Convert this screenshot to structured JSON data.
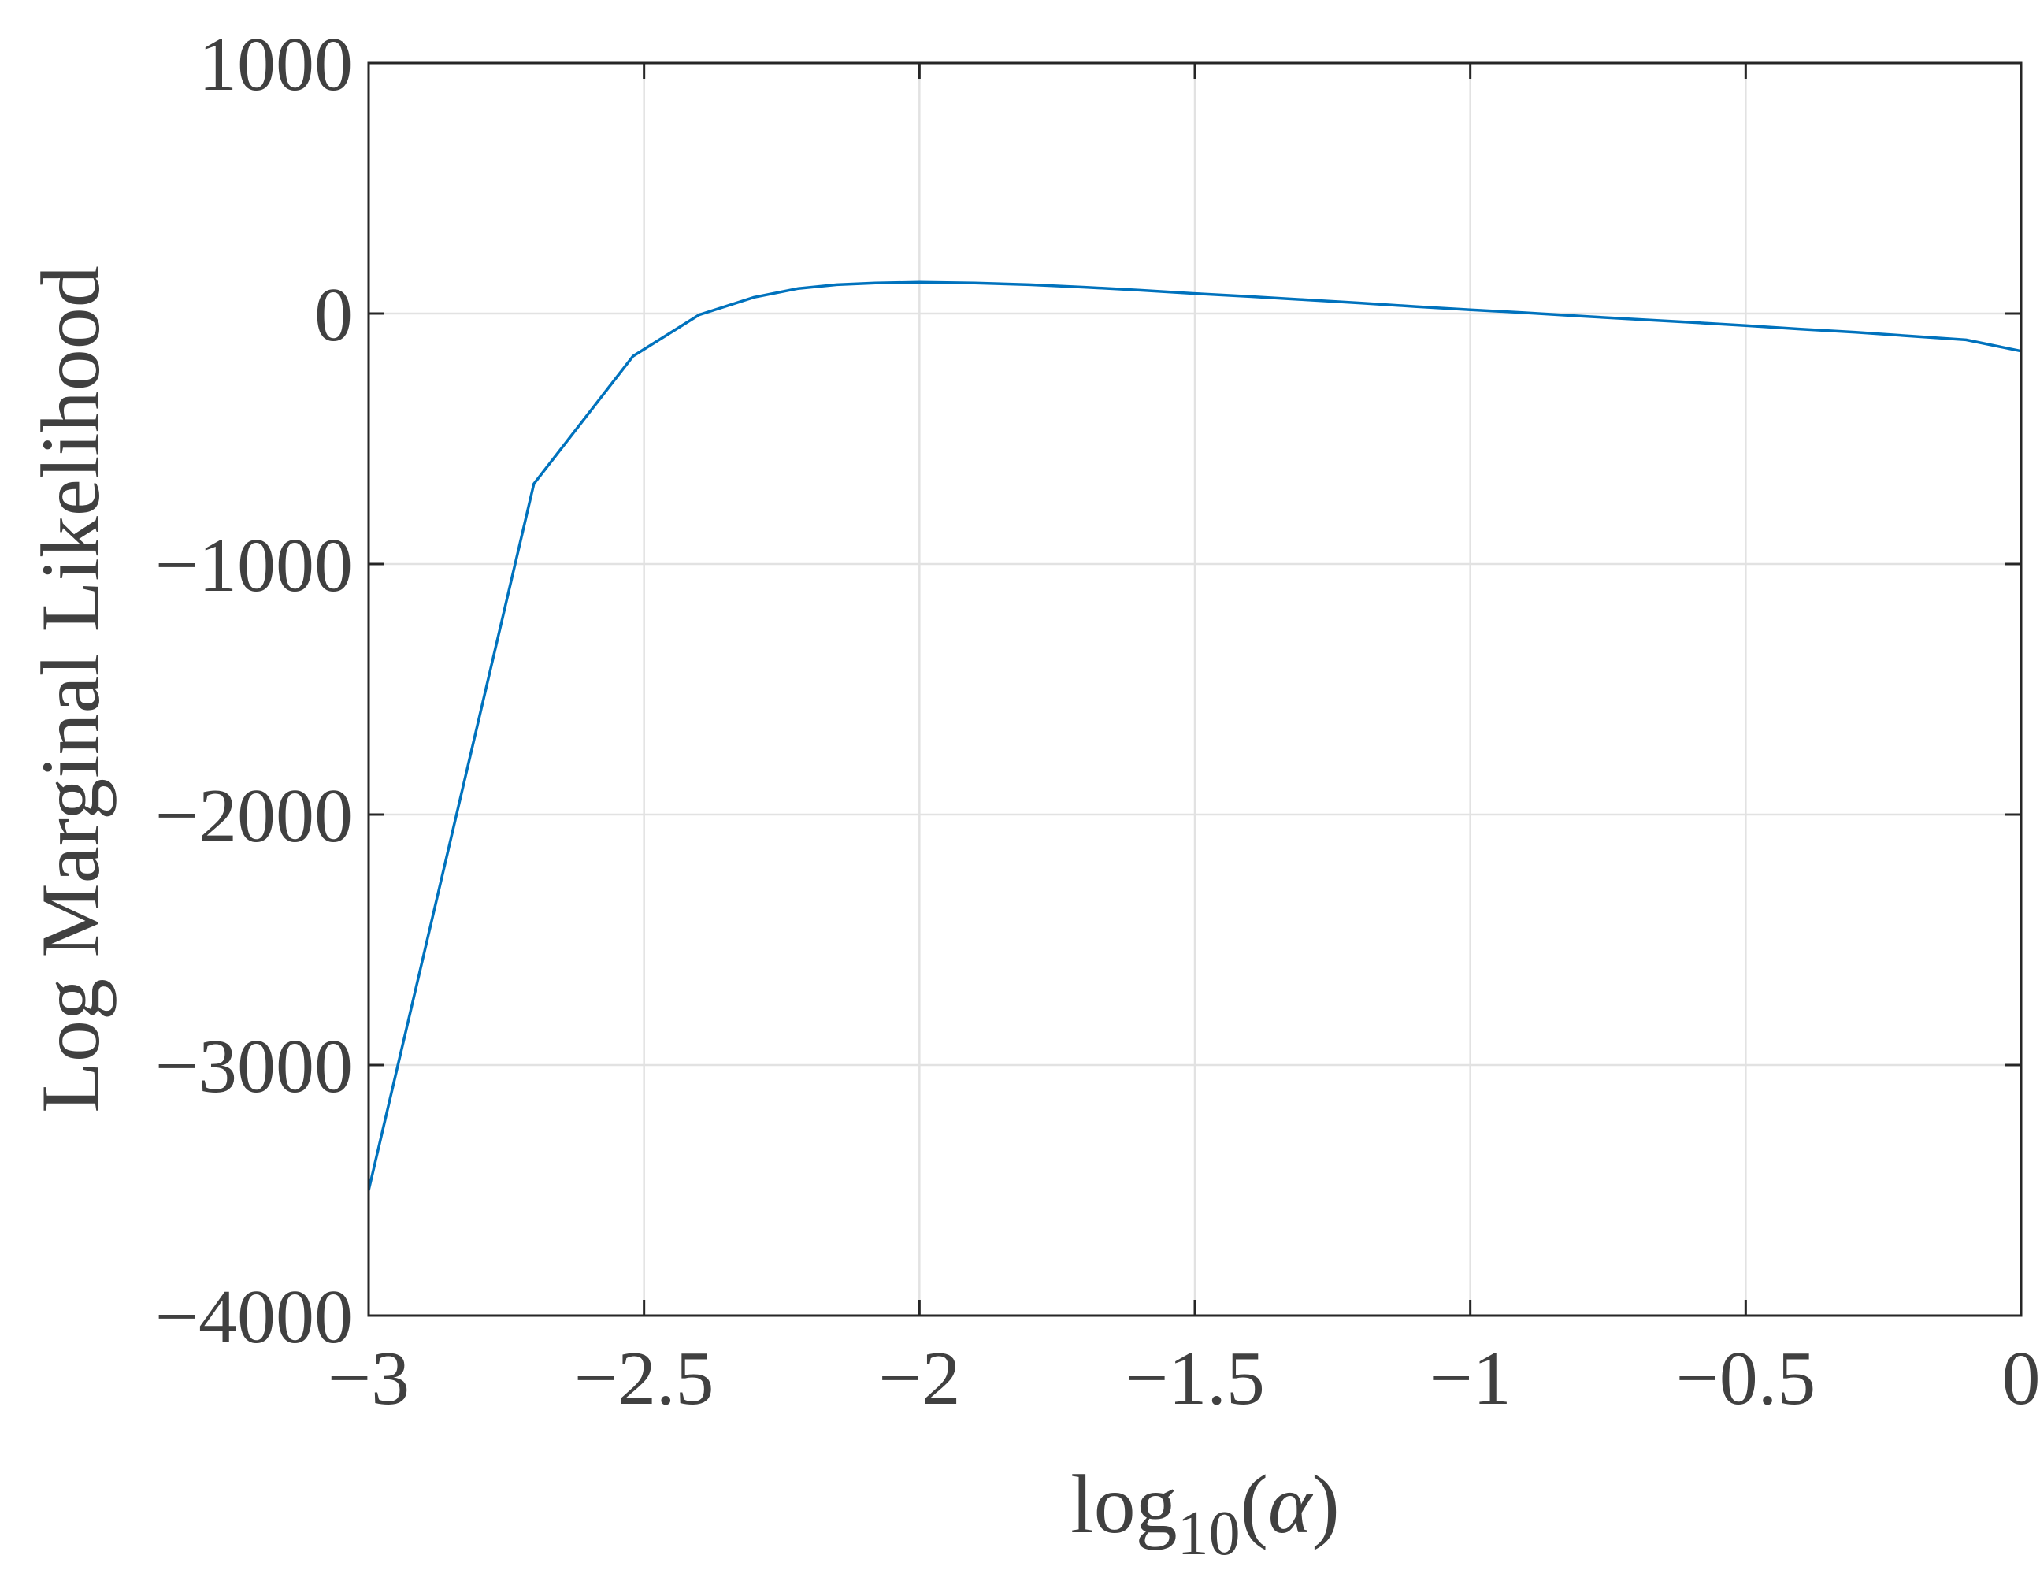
{
  "chart_data": {
    "type": "line",
    "title": "",
    "xlabel": {
      "prefix": "log",
      "subscript": "10",
      "open": "(",
      "symbol": "α",
      "close": ")"
    },
    "ylabel": "Log Marginal Likelihood",
    "xlim": [
      -3,
      0
    ],
    "ylim": [
      -4000,
      1000
    ],
    "grid": true,
    "xticks": [
      -3,
      -2.5,
      -2,
      -1.5,
      -1,
      -0.5,
      0
    ],
    "xtick_labels": [
      "−3",
      "−2.5",
      "−2",
      "−1.5",
      "−1",
      "−0.5",
      "0"
    ],
    "yticks": [
      -4000,
      -3000,
      -2000,
      -1000,
      0,
      1000
    ],
    "ytick_labels": [
      "−4000",
      "−3000",
      "−2000",
      "−1000",
      "0",
      "1000"
    ],
    "colors": {
      "line": "#0072BD",
      "axis": "#262626",
      "grid": "#E2E2E2",
      "text": "#404040"
    },
    "series": [
      {
        "x": [
          -3.0,
          -2.7,
          -2.52,
          -2.4,
          -2.3,
          -2.22,
          -2.15,
          -2.08,
          -2.0,
          -1.9,
          -1.8,
          -1.7,
          -1.6,
          -1.5,
          -1.4,
          -1.3,
          -1.2,
          -1.1,
          -1.0,
          -0.9,
          -0.8,
          -0.7,
          -0.6,
          -0.5,
          -0.4,
          -0.3,
          -0.2,
          -0.1,
          0.0
        ],
        "y": [
          -3500,
          -680,
          -170,
          -5,
          65,
          100,
          115,
          122,
          125,
          122,
          115,
          105,
          93,
          80,
          68,
          55,
          42,
          28,
          15,
          3,
          -10,
          -23,
          -35,
          -48,
          -62,
          -75,
          -90,
          -105,
          -150
        ]
      }
    ]
  }
}
